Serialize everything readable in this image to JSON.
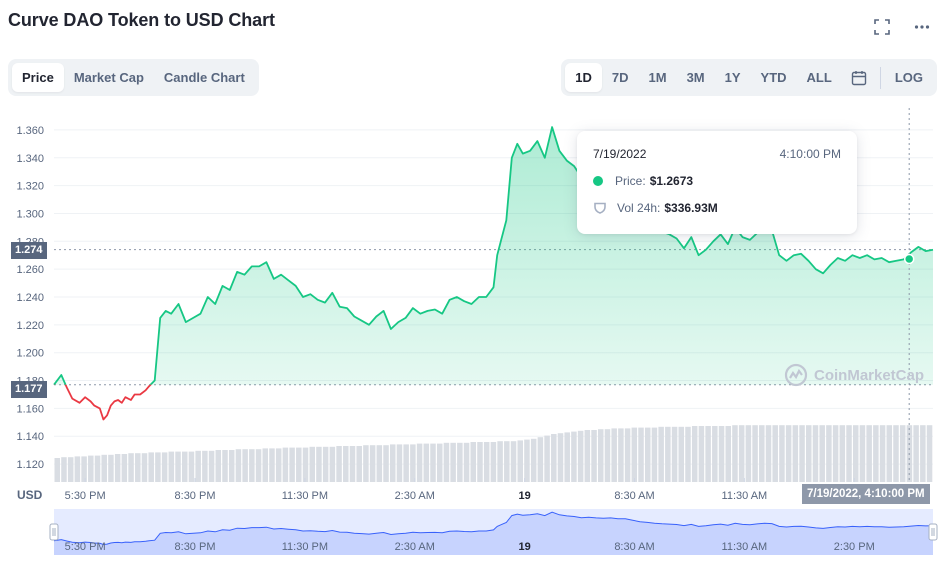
{
  "title": "Curve DAO Token to USD Chart",
  "icons": {
    "fullscreen": "fullscreen-icon",
    "more": "more-icon",
    "calendar": "calendar-icon",
    "logo": "coinmarketcap-logo-icon",
    "vol_icon": "shield-icon"
  },
  "tabs": [
    {
      "label": "Price",
      "active": true
    },
    {
      "label": "Market Cap",
      "active": false
    },
    {
      "label": "Candle Chart",
      "active": false
    }
  ],
  "ranges": [
    {
      "label": "1D",
      "active": true
    },
    {
      "label": "7D",
      "active": false
    },
    {
      "label": "1M",
      "active": false
    },
    {
      "label": "3M",
      "active": false
    },
    {
      "label": "1Y",
      "active": false
    },
    {
      "label": "YTD",
      "active": false
    },
    {
      "label": "ALL",
      "active": false
    }
  ],
  "log_label": "LOG",
  "tooltip": {
    "date": "7/19/2022",
    "time": "4:10:00 PM",
    "price_label": "Price:",
    "price_value": "$1.2673",
    "vol_label": "Vol 24h:",
    "vol_value": "$336.93M"
  },
  "watermark": "CoinMarketCap",
  "currency_label": "USD",
  "current_price_tag": "1.274",
  "open_price_tag": "1.177",
  "crosshair_date_tag": "7/19/2022, 4:10:00 PM",
  "colors": {
    "up": "#16c784",
    "down": "#ea3943",
    "nav_line": "#3861fb",
    "nav_fill": "#e5ebff",
    "volume": "#d9dde3"
  },
  "chart_data": {
    "type": "line",
    "title": "Curve DAO Token to USD Chart",
    "xlabel": "",
    "ylabel": "USD",
    "ylim": [
      1.11,
      1.37
    ],
    "y_ticks": [
      "1.120",
      "1.140",
      "1.160",
      "1.180",
      "1.200",
      "1.220",
      "1.240",
      "1.260",
      "1.280",
      "1.300",
      "1.320",
      "1.340",
      "1.360"
    ],
    "x_ticks": [
      "5:30 PM",
      "8:30 PM",
      "11:30 PM",
      "2:30 AM",
      "19",
      "8:30 AM",
      "11:30 AM",
      "2:30 PM"
    ],
    "nav_ticks": [
      "5:30 PM",
      "8:30 PM",
      "11:30 PM",
      "2:30 AM",
      "19",
      "8:30 AM",
      "11:30 AM",
      "2:30 PM"
    ],
    "x_hours": [
      0,
      0.2,
      0.35,
      0.5,
      0.7,
      0.85,
      1.0,
      1.1,
      1.25,
      1.35,
      1.45,
      1.55,
      1.65,
      1.75,
      1.85,
      1.95,
      2.1,
      2.2,
      2.35,
      2.5,
      2.6,
      2.75,
      2.9,
      3.05,
      3.2,
      3.4,
      3.6,
      3.8,
      4.0,
      4.2,
      4.4,
      4.6,
      4.8,
      5.0,
      5.2,
      5.4,
      5.6,
      5.8,
      6.0,
      6.2,
      6.4,
      6.6,
      6.8,
      7.0,
      7.2,
      7.4,
      7.6,
      7.8,
      8.0,
      8.2,
      8.4,
      8.6,
      8.8,
      9.0,
      9.2,
      9.4,
      9.6,
      9.8,
      10.0,
      10.2,
      10.4,
      10.6,
      10.8,
      11.0,
      11.2,
      11.4,
      11.6,
      11.8,
      12.0,
      12.1,
      12.2,
      12.35,
      12.5,
      12.65,
      12.8,
      13.0,
      13.2,
      13.4,
      13.6,
      13.8,
      14.0,
      14.2,
      14.4,
      14.6,
      14.8,
      15.0,
      15.2,
      15.4,
      15.6,
      15.8,
      16.0,
      16.2,
      16.4,
      16.6,
      16.8,
      17.0,
      17.2,
      17.4,
      17.6,
      17.8,
      18.0,
      18.2,
      18.4,
      18.6,
      18.8,
      19.0,
      19.2,
      19.4,
      19.6,
      19.8,
      20.0,
      20.2,
      20.4,
      20.6,
      20.8,
      21.0,
      21.2,
      21.4,
      21.6,
      21.8,
      22.0,
      22.2,
      22.4,
      22.6,
      22.8,
      23.0,
      23.2,
      23.4,
      23.6,
      23.8,
      24.0
    ],
    "series": [
      {
        "values": [
          1.177,
          1.184,
          1.175,
          1.167,
          1.164,
          1.168,
          1.165,
          1.162,
          1.16,
          1.152,
          1.155,
          1.162,
          1.165,
          1.166,
          1.164,
          1.168,
          1.166,
          1.17,
          1.17,
          1.173,
          1.176,
          1.18,
          1.225,
          1.23,
          1.228,
          1.235,
          1.222,
          1.225,
          1.228,
          1.24,
          1.235,
          1.248,
          1.245,
          1.258,
          1.256,
          1.262,
          1.262,
          1.265,
          1.253,
          1.256,
          1.252,
          1.248,
          1.24,
          1.242,
          1.238,
          1.236,
          1.243,
          1.233,
          1.232,
          1.226,
          1.223,
          1.22,
          1.226,
          1.23,
          1.217,
          1.222,
          1.225,
          1.232,
          1.228,
          1.23,
          1.231,
          1.228,
          1.238,
          1.24,
          1.237,
          1.235,
          1.24,
          1.24,
          1.247,
          1.27,
          1.28,
          1.295,
          1.34,
          1.35,
          1.343,
          1.345,
          1.352,
          1.34,
          1.362,
          1.345,
          1.338,
          1.334,
          1.326,
          1.33,
          1.325,
          1.323,
          1.325,
          1.32,
          1.32,
          1.31,
          1.3,
          1.296,
          1.29,
          1.287,
          1.285,
          1.282,
          1.275,
          1.283,
          1.27,
          1.274,
          1.28,
          1.285,
          1.278,
          1.29,
          1.283,
          1.281,
          1.286,
          1.29,
          1.288,
          1.27,
          1.266,
          1.27,
          1.271,
          1.266,
          1.26,
          1.257,
          1.263,
          1.268,
          1.266,
          1.27,
          1.268,
          1.27,
          1.267,
          1.268,
          1.265,
          1.266,
          1.267,
          1.272,
          1.276,
          1.273,
          1.274
        ]
      }
    ],
    "volume": [
      0.3,
      0.31,
      0.31,
      0.32,
      0.32,
      0.33,
      0.33,
      0.34,
      0.34,
      0.35,
      0.35,
      0.36,
      0.36,
      0.36,
      0.37,
      0.37,
      0.37,
      0.38,
      0.38,
      0.38,
      0.38,
      0.39,
      0.39,
      0.39,
      0.4,
      0.4,
      0.4,
      0.41,
      0.41,
      0.41,
      0.41,
      0.42,
      0.42,
      0.42,
      0.43,
      0.43,
      0.43,
      0.43,
      0.44,
      0.44,
      0.44,
      0.44,
      0.45,
      0.45,
      0.45,
      0.45,
      0.46,
      0.46,
      0.46,
      0.46,
      0.47,
      0.47,
      0.47,
      0.47,
      0.48,
      0.48,
      0.48,
      0.48,
      0.49,
      0.49,
      0.49,
      0.49,
      0.5,
      0.5,
      0.5,
      0.5,
      0.51,
      0.51,
      0.51,
      0.52,
      0.53,
      0.54,
      0.56,
      0.58,
      0.6,
      0.61,
      0.62,
      0.63,
      0.64,
      0.65,
      0.65,
      0.66,
      0.66,
      0.67,
      0.67,
      0.67,
      0.68,
      0.68,
      0.68,
      0.68,
      0.69,
      0.69,
      0.69,
      0.69,
      0.69,
      0.7,
      0.7,
      0.7,
      0.7,
      0.7,
      0.7,
      0.71,
      0.71,
      0.71,
      0.71,
      0.71,
      0.71,
      0.71,
      0.71,
      0.71,
      0.71,
      0.71,
      0.71,
      0.71,
      0.71,
      0.71,
      0.71,
      0.71,
      0.71,
      0.71,
      0.71,
      0.71,
      0.71,
      0.71,
      0.71,
      0.71,
      0.71,
      0.71,
      0.71,
      0.71,
      0.71
    ],
    "highlight_point": {
      "hour": 23.35,
      "value": 1.2673
    },
    "open_reference": 1.177,
    "grid": true,
    "log_scale": false
  }
}
